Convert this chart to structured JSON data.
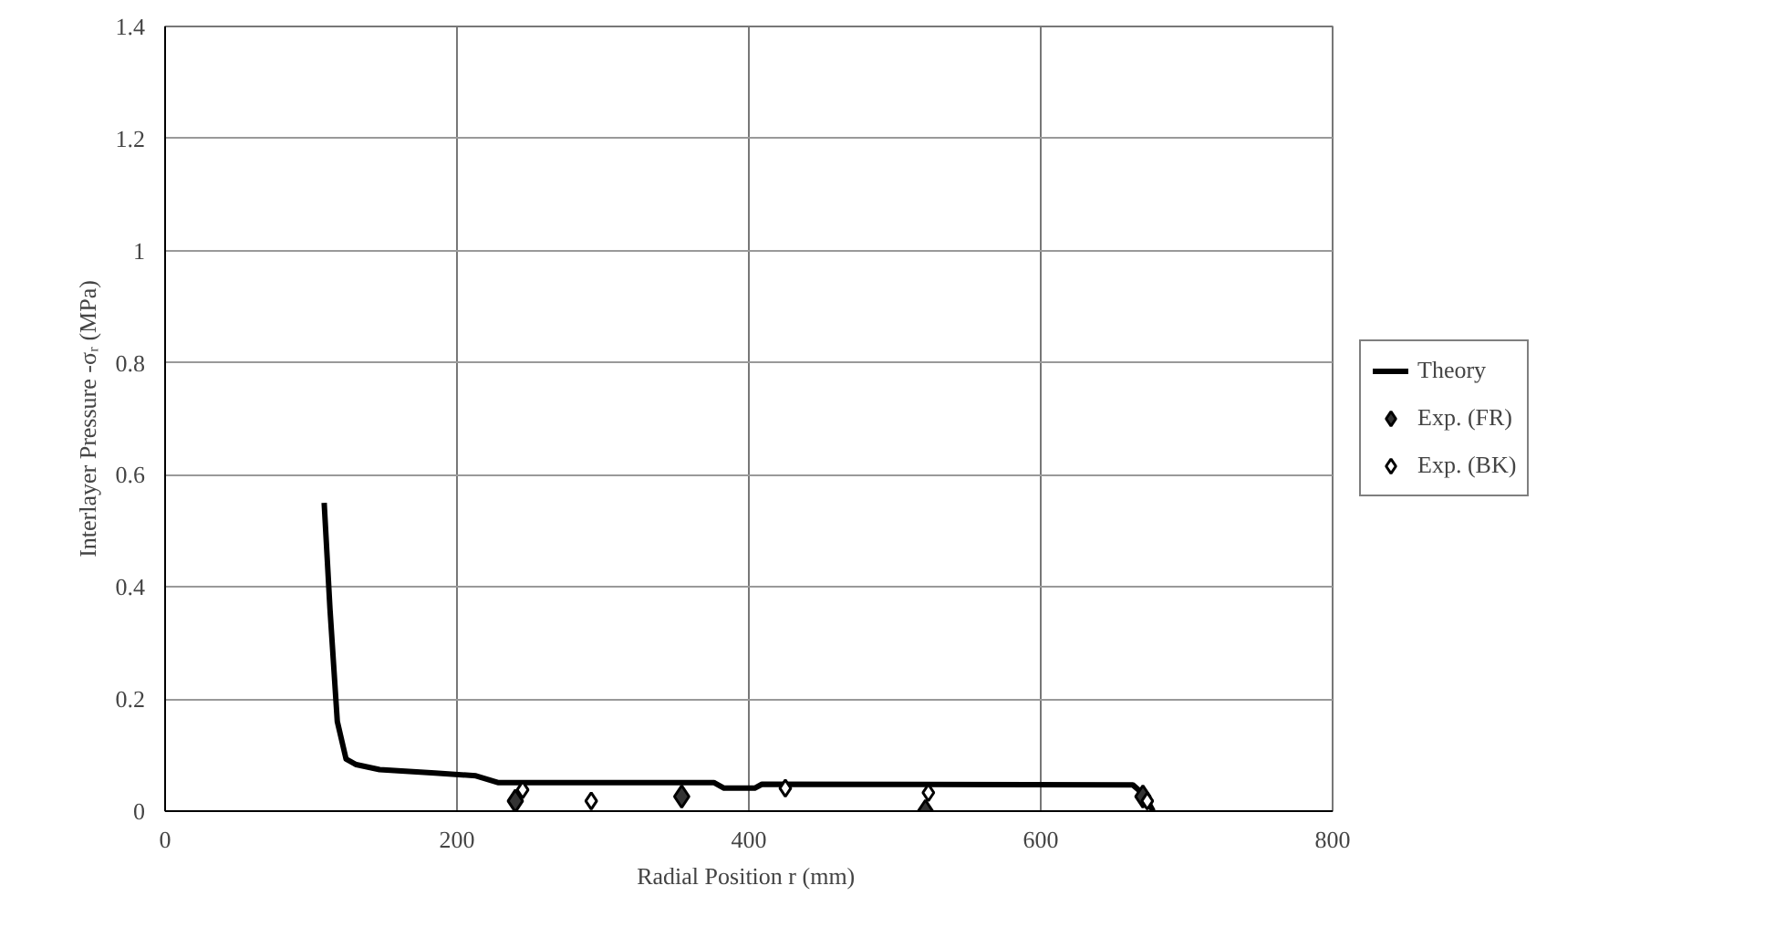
{
  "chart_data": {
    "type": "line",
    "xlabel": "Radial Position r  (mm)",
    "ylabel": "Interlayer Pressure -σᵣ (MPa)",
    "xlim": [
      0,
      800
    ],
    "xticks": [
      0,
      200,
      400,
      600,
      800
    ],
    "ylim": [
      0,
      1.4
    ],
    "yticks": [
      0,
      0.2,
      0.4,
      0.6,
      0.8,
      1,
      1.2,
      1.4
    ],
    "grid": true,
    "legend": "right",
    "series": [
      {
        "name": "Theory",
        "color": "#000000",
        "marker": "none",
        "x": [
          109,
          113,
          118,
          124,
          131,
          147,
          185,
          213,
          228,
          376,
          383,
          404,
          409,
          663,
          671,
          677
        ],
        "values": [
          0.55,
          0.36,
          0.16,
          0.093,
          0.083,
          0.074,
          0.068,
          0.063,
          0.051,
          0.051,
          0.041,
          0.041,
          0.048,
          0.047,
          0.029,
          0
        ]
      },
      {
        "name": "Exp. (FR)",
        "type": "scatter",
        "color": "#333333",
        "marker": "diamond",
        "x": [
          240,
          354,
          521,
          670
        ],
        "values": [
          0.018,
          0.026,
          0,
          0.026
        ]
      },
      {
        "name": "Exp. (BK)",
        "type": "scatter",
        "color": "#ffffff",
        "marker": "diamond",
        "x": [
          245,
          292,
          425,
          523,
          673
        ],
        "values": [
          0.038,
          0.018,
          0.041,
          0.033,
          0.018
        ]
      }
    ]
  }
}
